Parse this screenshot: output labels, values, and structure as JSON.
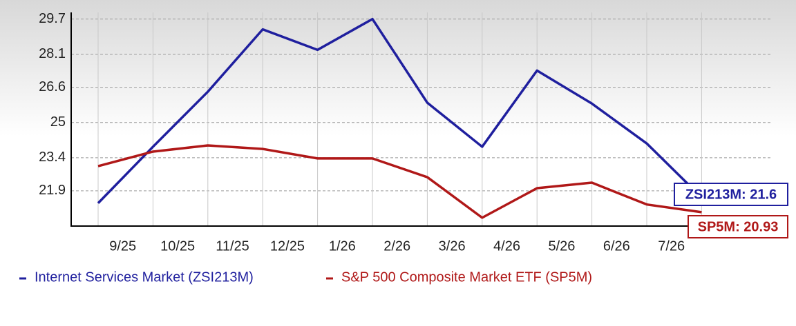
{
  "chart_data": {
    "type": "line",
    "categories": [
      "9/25",
      "10/25",
      "11/25",
      "12/25",
      "1/26",
      "2/26",
      "3/26",
      "4/26",
      "5/26",
      "6/26",
      "7/26",
      null
    ],
    "series": [
      {
        "name": "Internet Services Market (ZSI213M)",
        "color": "#1f1f9e",
        "values": [
          21.34,
          23.9,
          26.4,
          29.23,
          28.3,
          29.7,
          25.9,
          23.9,
          27.36,
          25.86,
          24.05,
          21.6
        ],
        "end_label": "ZSI213M: 21.6"
      },
      {
        "name": "S&P 500 Composite Market ETF (SP5M)",
        "color": "#b01818",
        "values": [
          23.02,
          23.68,
          23.96,
          23.8,
          23.37,
          23.37,
          22.52,
          20.68,
          22.02,
          22.27,
          21.28,
          20.93
        ],
        "end_label": "SP5M: 20.93"
      }
    ],
    "ylim": [
      20.3,
      30.0
    ],
    "yticks": [
      {
        "value": 21.9,
        "label": "21.9"
      },
      23.4,
      25,
      26.6,
      28.1,
      29.7
    ],
    "grid": true
  }
}
